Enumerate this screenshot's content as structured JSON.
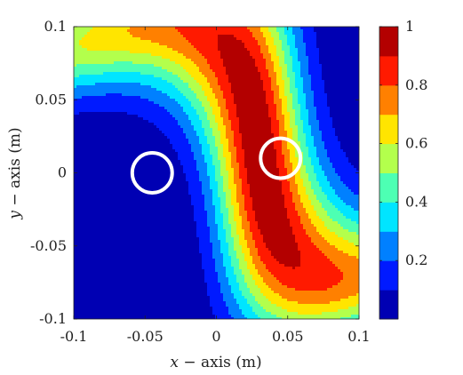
{
  "chart_data": {
    "type": "contour",
    "title": "",
    "xlabel": {
      "var": "x",
      "text": " − axis (m)"
    },
    "ylabel": {
      "var": "y",
      "text": " − axis (m)"
    },
    "xlim": [
      -0.1,
      0.1
    ],
    "ylim": [
      -0.1,
      0.1
    ],
    "x_ticks": [
      "-0.1",
      "-0.05",
      "0",
      "0.05",
      "0.1"
    ],
    "x_tick_values": [
      -0.1,
      -0.05,
      0,
      0.05,
      0.1
    ],
    "y_ticks": [
      "-0.1",
      "-0.05",
      "0",
      "0.05",
      "0.1"
    ],
    "y_tick_values": [
      -0.1,
      -0.05,
      0,
      0.05,
      0.1
    ],
    "colorbar": {
      "range": [
        0,
        1
      ],
      "ticks": [
        "0.2",
        "0.4",
        "0.6",
        "0.8",
        "1"
      ],
      "tick_values": [
        0.2,
        0.4,
        0.6,
        0.8,
        1.0
      ],
      "colormap": "jet",
      "levels": 10
    },
    "field": {
      "description_of_shape": "band elongated along the diagonal from top-left to bottom-right with a maximum near (0.03, 0.015)",
      "peak": [
        0.03,
        0.015
      ],
      "direction": [
        1,
        -0.65
      ]
    },
    "markers": [
      {
        "name": "circle-left",
        "x": -0.045,
        "y": 0.0,
        "r": 0.014,
        "color": "#ffffff"
      },
      {
        "name": "circle-right",
        "x": 0.045,
        "y": 0.01,
        "r": 0.014,
        "color": "#ffffff"
      }
    ],
    "grid": false,
    "legend": "none"
  }
}
